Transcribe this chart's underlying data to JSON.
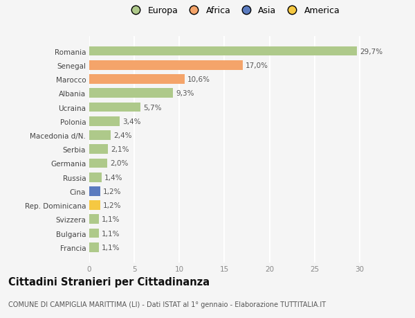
{
  "countries": [
    "Romania",
    "Senegal",
    "Marocco",
    "Albania",
    "Ucraina",
    "Polonia",
    "Macedonia d/N.",
    "Serbia",
    "Germania",
    "Russia",
    "Cina",
    "Rep. Dominicana",
    "Svizzera",
    "Bulgaria",
    "Francia"
  ],
  "values": [
    29.7,
    17.0,
    10.6,
    9.3,
    5.7,
    3.4,
    2.4,
    2.1,
    2.0,
    1.4,
    1.2,
    1.2,
    1.1,
    1.1,
    1.1
  ],
  "labels": [
    "29,7%",
    "17,0%",
    "10,6%",
    "9,3%",
    "5,7%",
    "3,4%",
    "2,4%",
    "2,1%",
    "2,0%",
    "1,4%",
    "1,2%",
    "1,2%",
    "1,1%",
    "1,1%",
    "1,1%"
  ],
  "continents": [
    "Europa",
    "Africa",
    "Africa",
    "Europa",
    "Europa",
    "Europa",
    "Europa",
    "Europa",
    "Europa",
    "Europa",
    "Asia",
    "America",
    "Europa",
    "Europa",
    "Europa"
  ],
  "colors": {
    "Europa": "#aec98a",
    "Africa": "#f4a46a",
    "Asia": "#5b7bbf",
    "America": "#f5c842"
  },
  "legend_order": [
    "Europa",
    "Africa",
    "Asia",
    "America"
  ],
  "xlim": [
    0,
    32
  ],
  "xticks": [
    0,
    5,
    10,
    15,
    20,
    25,
    30
  ],
  "title": "Cittadini Stranieri per Cittadinanza",
  "subtitle": "COMUNE DI CAMPIGLIA MARITTIMA (LI) - Dati ISTAT al 1° gennaio - Elaborazione TUTTITALIA.IT",
  "background_color": "#f5f5f5",
  "grid_color": "#ffffff",
  "bar_height": 0.68,
  "label_fontsize": 7.5,
  "tick_fontsize": 7.5,
  "title_fontsize": 10.5,
  "subtitle_fontsize": 7.0,
  "legend_fontsize": 9.0
}
